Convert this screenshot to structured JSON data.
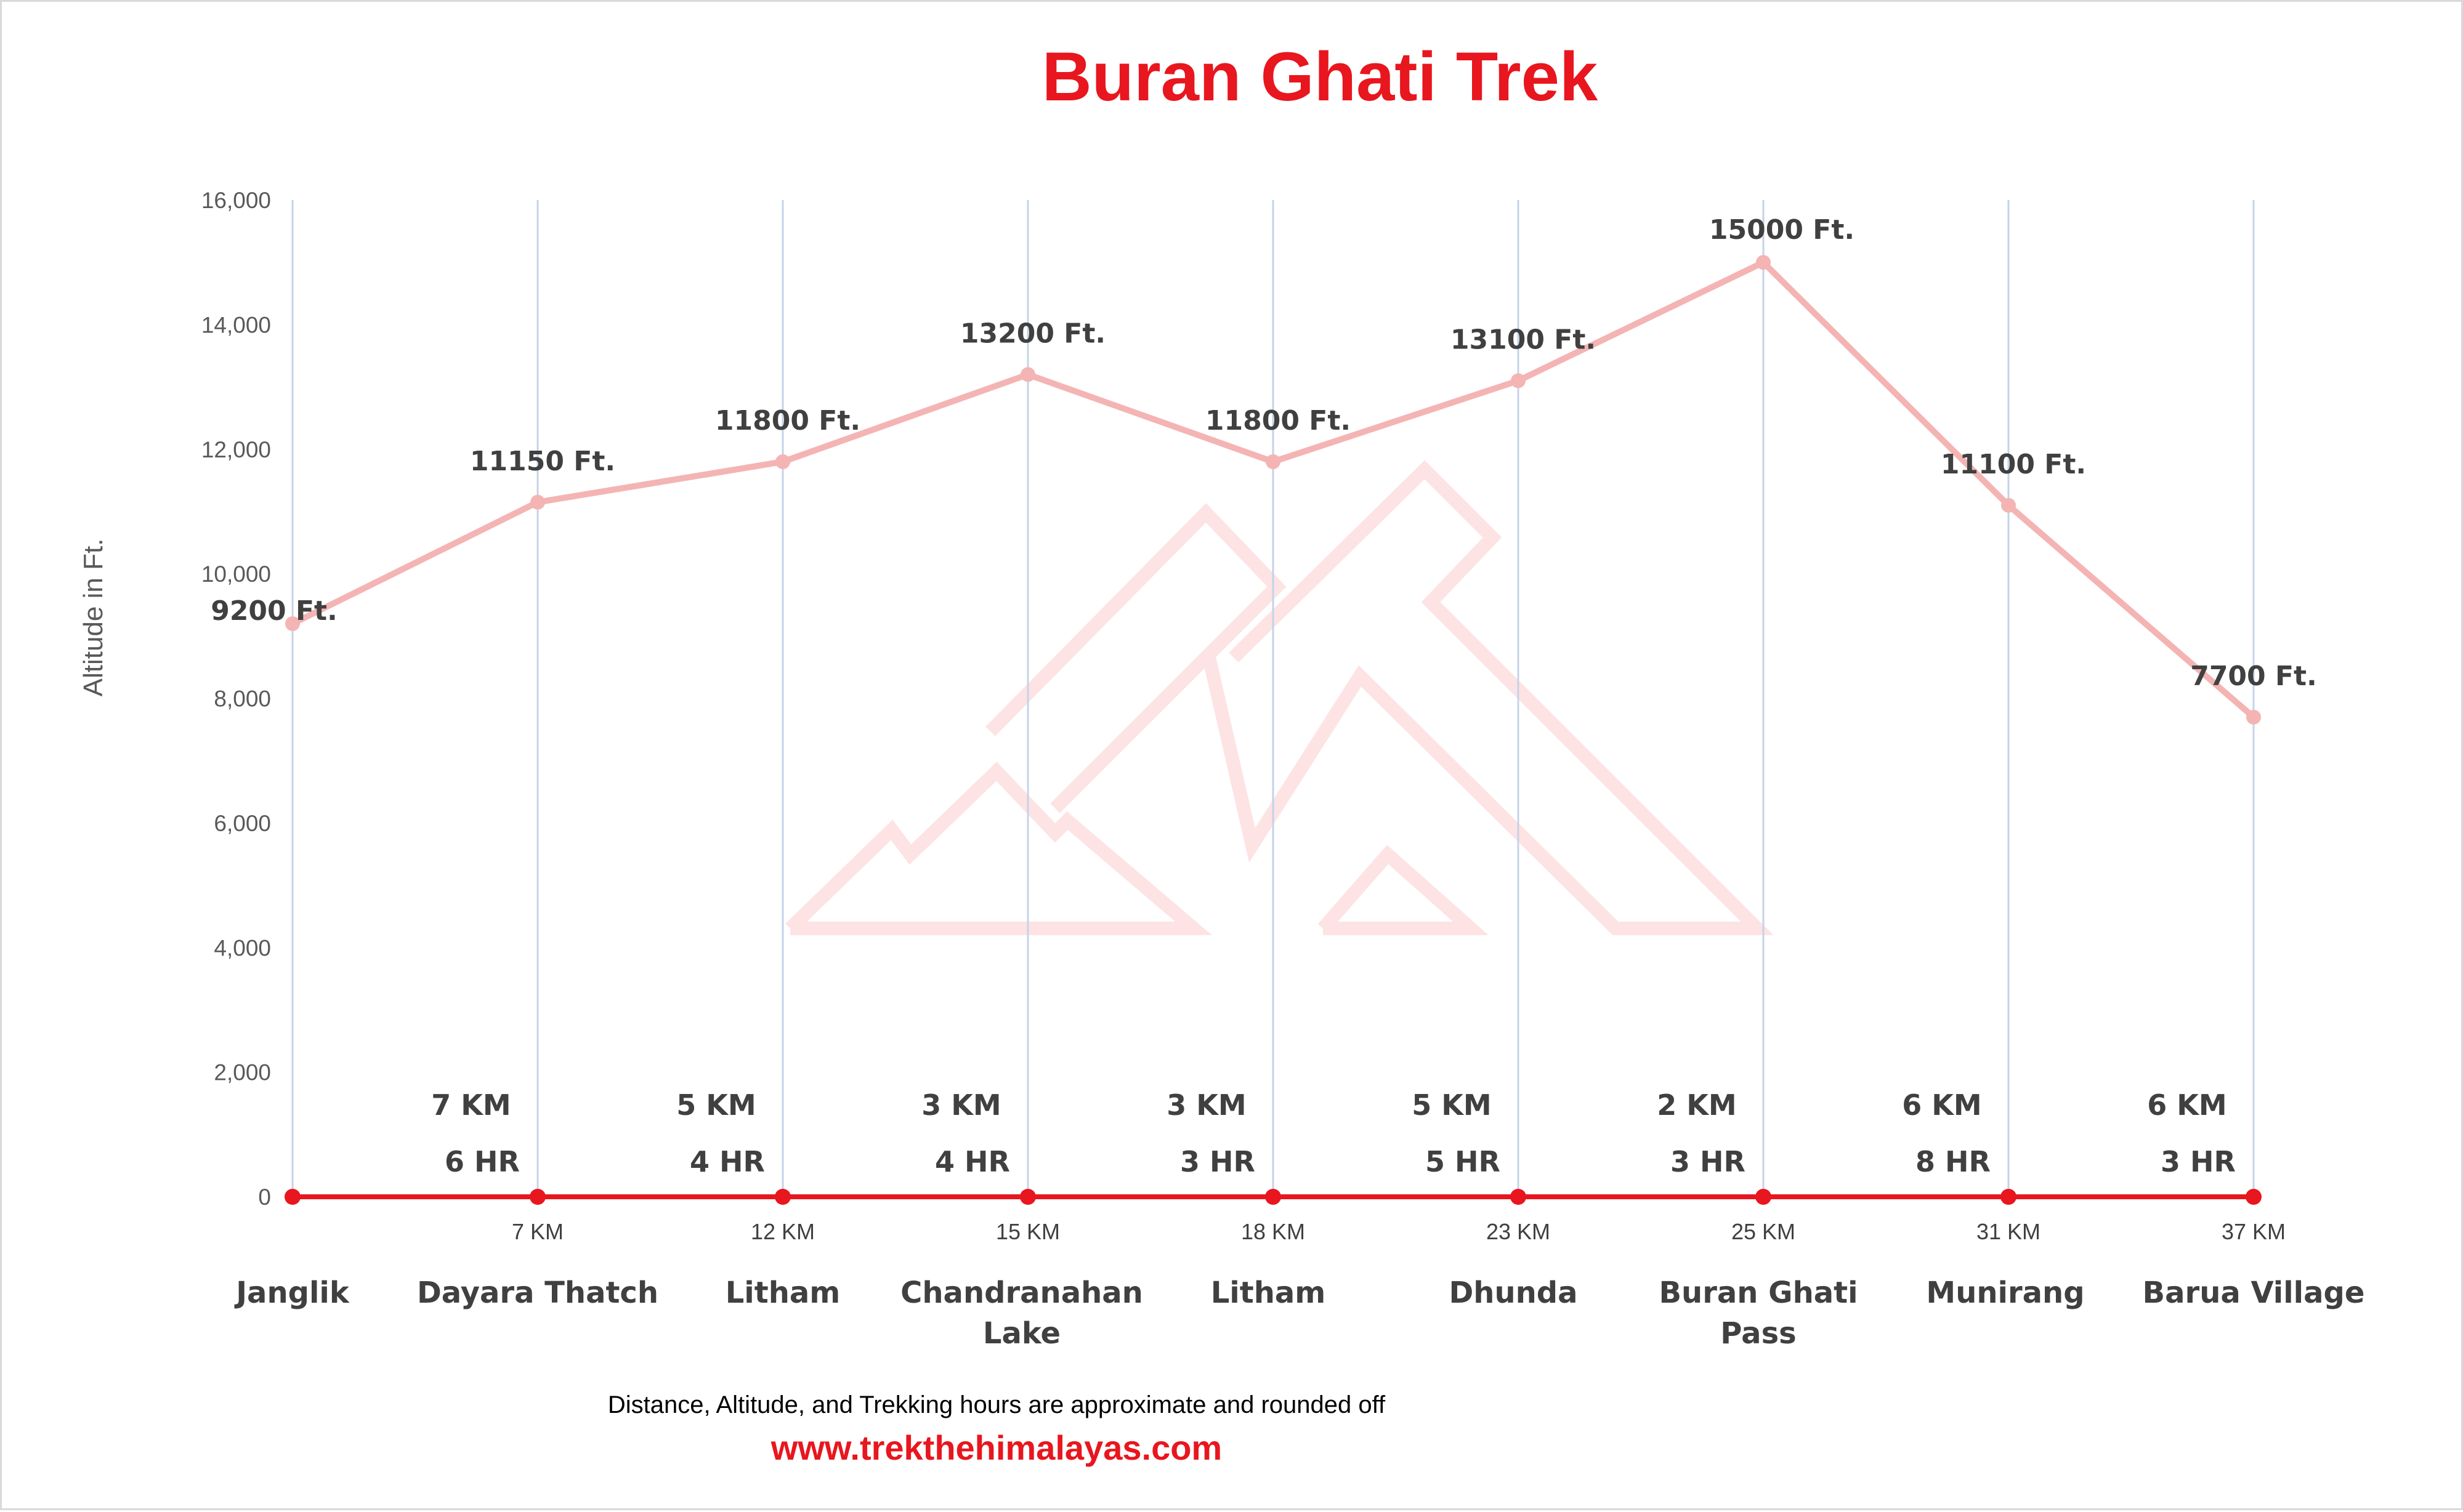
{
  "chart_data": {
    "type": "line",
    "title": "Buran Ghati  Trek",
    "ylabel": "Altitude in Ft.",
    "ylim": [
      0,
      16000
    ],
    "yticks": [
      0,
      2000,
      4000,
      6000,
      8000,
      10000,
      12000,
      14000,
      16000
    ],
    "ytick_labels": [
      "0",
      "2,000",
      "4,000",
      "6,000",
      "8,000",
      "10,000",
      "12,000",
      "14,000",
      "16,000"
    ],
    "grid": "vertical",
    "categories": [
      "Janglik",
      "Dayara Thatch",
      "Litham",
      "Chandranahan Lake",
      "Litham",
      "Dhunda",
      "Buran Ghati Pass",
      "Munirang",
      "Barua Village"
    ],
    "category_lines": [
      [
        "Janglik"
      ],
      [
        "Dayara Thatch"
      ],
      [
        "Litham"
      ],
      [
        "Chandranahan",
        "Lake"
      ],
      [
        "Litham"
      ],
      [
        "Dhunda"
      ],
      [
        "Buran Ghati",
        "Pass"
      ],
      [
        "Munirang"
      ],
      [
        "Barua Village"
      ]
    ],
    "series": [
      {
        "values": [
          9200,
          11150,
          11800,
          13200,
          11800,
          13100,
          15000,
          11100,
          7700
        ],
        "labels": [
          "9200 Ft.",
          "11150 Ft.",
          "11800 Ft.",
          "13200 Ft.",
          "11800 Ft.",
          "13100 Ft.",
          "15000 Ft.",
          "11100 Ft.",
          "7700 Ft."
        ],
        "color": "#f4b4b4"
      },
      {
        "values": [
          0,
          0,
          0,
          0,
          0,
          0,
          0,
          0,
          0
        ],
        "color": "#e8161e"
      }
    ],
    "segment_distance": [
      "",
      "7 KM",
      "5 KM",
      "3 KM",
      "3 KM",
      "5 KM",
      "2 KM",
      "6 KM",
      "6 KM"
    ],
    "segment_time": [
      "",
      "6 HR",
      "4 HR",
      "4 HR",
      "3 HR",
      "5 HR",
      "3 HR",
      "8 HR",
      "3 HR"
    ],
    "cumulative_distance": [
      "",
      "7 KM",
      "12 KM",
      "15 KM",
      "18 KM",
      "23 KM",
      "25 KM",
      "31 KM",
      "37 KM"
    ]
  },
  "footer": {
    "note": "Distance, Altitude, and Trekking hours are approximate and rounded off",
    "website": "www.trekthehimalayas.com"
  },
  "colors": {
    "accent": "#e8161e",
    "altitude_line": "#f4b4b4",
    "gridline": "#c5d3e8",
    "watermark": "#fde3e3"
  }
}
